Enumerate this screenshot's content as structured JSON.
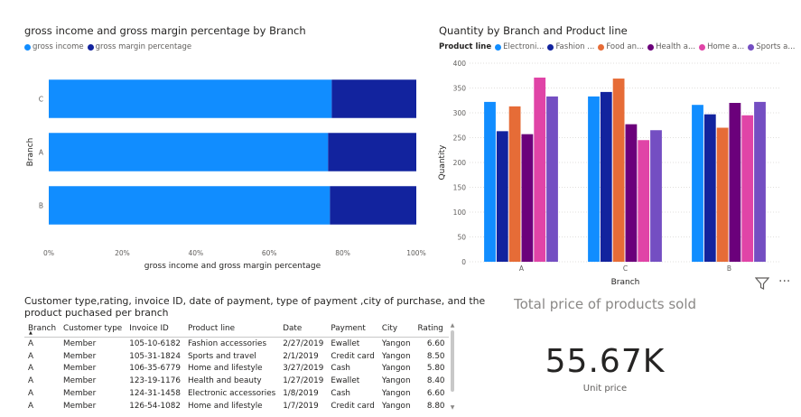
{
  "left_chart": {
    "title": "gross income and gross margin percentage by Branch",
    "legend": [
      {
        "label": "gross income",
        "color": "#118dff"
      },
      {
        "label": "gross margin percentage",
        "color": "#12239e"
      }
    ]
  },
  "right_chart": {
    "title": "Quantity by Branch and Product line",
    "legend_title": "Product line",
    "legend": [
      {
        "label": "Electroni...",
        "color": "#118dff"
      },
      {
        "label": "Fashion ...",
        "color": "#12239e"
      },
      {
        "label": "Food an...",
        "color": "#e66c37"
      },
      {
        "label": "Health a...",
        "color": "#6b007b"
      },
      {
        "label": "Home a...",
        "color": "#e044a7"
      },
      {
        "label": "Sports a...",
        "color": "#744ec2"
      }
    ]
  },
  "chart_data": [
    {
      "type": "bar",
      "orientation": "horizontal",
      "stacked": "100%",
      "title": "gross income and gross margin percentage by Branch",
      "xlabel": "gross income and gross margin percentage",
      "ylabel": "Branch",
      "categories": [
        "C",
        "A",
        "B"
      ],
      "series": [
        {
          "name": "gross income",
          "values": [
            77,
            76,
            76.5
          ],
          "color": "#118dff"
        },
        {
          "name": "gross margin percentage",
          "values": [
            23,
            24,
            23.5
          ],
          "color": "#12239e"
        }
      ],
      "xticks": [
        "0%",
        "20%",
        "40%",
        "60%",
        "80%",
        "100%"
      ],
      "xlim": [
        0,
        100
      ],
      "legend": "top-left"
    },
    {
      "type": "bar",
      "title": "Quantity by Branch and Product line",
      "xlabel": "Branch",
      "ylabel": "Quantity",
      "categories": [
        "A",
        "C",
        "B"
      ],
      "series": [
        {
          "name": "Electroni...",
          "values": [
            322,
            333,
            316
          ],
          "color": "#118dff"
        },
        {
          "name": "Fashion ...",
          "values": [
            263,
            342,
            297
          ],
          "color": "#12239e"
        },
        {
          "name": "Food an...",
          "values": [
            313,
            369,
            270
          ],
          "color": "#e66c37"
        },
        {
          "name": "Health a...",
          "values": [
            257,
            277,
            320
          ],
          "color": "#6b007b"
        },
        {
          "name": "Home a...",
          "values": [
            371,
            245,
            295
          ],
          "color": "#e044a7"
        },
        {
          "name": "Sports a...",
          "values": [
            333,
            265,
            322
          ],
          "color": "#744ec2"
        }
      ],
      "yticks": [
        "0",
        "50",
        "100",
        "150",
        "200",
        "250",
        "300",
        "350",
        "400"
      ],
      "ylim": [
        0,
        400
      ],
      "legend": "top-left"
    }
  ],
  "table": {
    "title_line1": "Customer type,rating, invoice ID, date of payment, type of payment ,city of purchase, and the",
    "title_line2": "product puchased per branch",
    "columns": [
      "Branch",
      "Customer type",
      "Invoice ID",
      "Product line",
      "Date",
      "Payment",
      "City",
      "Rating"
    ],
    "rows": [
      [
        "A",
        "Member",
        "105-10-6182",
        "Fashion accessories",
        "2/27/2019",
        "Ewallet",
        "Yangon",
        "6.60"
      ],
      [
        "A",
        "Member",
        "105-31-1824",
        "Sports and travel",
        "2/1/2019",
        "Credit card",
        "Yangon",
        "8.50"
      ],
      [
        "A",
        "Member",
        "106-35-6779",
        "Home and lifestyle",
        "3/27/2019",
        "Cash",
        "Yangon",
        "5.80"
      ],
      [
        "A",
        "Member",
        "123-19-1176",
        "Health and beauty",
        "1/27/2019",
        "Ewallet",
        "Yangon",
        "8.40"
      ],
      [
        "A",
        "Member",
        "124-31-1458",
        "Electronic accessories",
        "1/8/2019",
        "Cash",
        "Yangon",
        "6.60"
      ],
      [
        "A",
        "Member",
        "126-54-1082",
        "Home and lifestyle",
        "1/7/2019",
        "Credit card",
        "Yangon",
        "8.80"
      ]
    ]
  },
  "card": {
    "title": "Total price of products sold",
    "value": "55.67K",
    "subtitle": "Unit price"
  },
  "toolbar": {
    "filter_icon": "filter-icon",
    "more_icon": "more-options-icon",
    "more_label": "···"
  }
}
